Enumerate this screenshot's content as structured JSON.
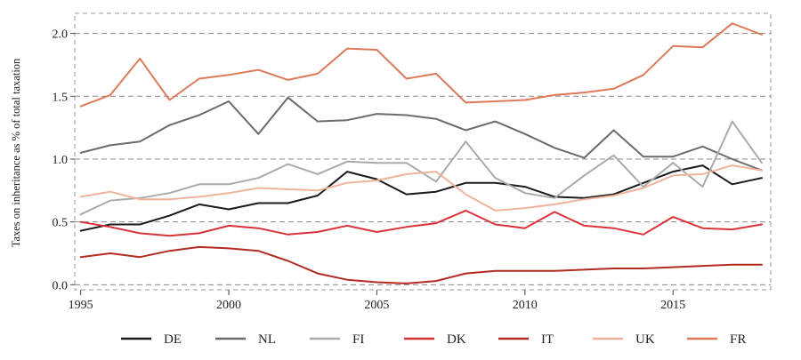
{
  "chart_data": {
    "type": "line",
    "title": "",
    "xlabel": "",
    "ylabel": "Taxes on inheritance as % of total taxation",
    "xlim": [
      1994.8,
      2018.3
    ],
    "ylim": [
      -0.04,
      2.16
    ],
    "x_ticks": [
      1995,
      2000,
      2005,
      2010,
      2015
    ],
    "y_ticks": [
      0.0,
      0.5,
      1.0,
      1.5,
      2.0
    ],
    "x_tick_labels": [
      "1995",
      "2000",
      "2005",
      "2010",
      "2015"
    ],
    "y_tick_labels": [
      "0.0",
      "0.5",
      "1.0",
      "1.5",
      "2.0"
    ],
    "grid": "horizontal dashed",
    "legend_position": "bottom",
    "x": [
      1995,
      1996,
      1997,
      1998,
      1999,
      2000,
      2001,
      2002,
      2003,
      2004,
      2005,
      2006,
      2007,
      2008,
      2009,
      2010,
      2011,
      2012,
      2013,
      2014,
      2015,
      2016,
      2017,
      2018
    ],
    "series": [
      {
        "name": "DE",
        "color": "#1a1a1a",
        "values": [
          0.43,
          0.48,
          0.48,
          0.55,
          0.64,
          0.6,
          0.65,
          0.65,
          0.71,
          0.9,
          0.84,
          0.72,
          0.74,
          0.81,
          0.81,
          0.78,
          0.7,
          0.69,
          0.72,
          0.81,
          0.9,
          0.95,
          0.8,
          0.85
        ]
      },
      {
        "name": "NL",
        "color": "#6b6b6b",
        "values": [
          1.05,
          1.11,
          1.14,
          1.27,
          1.35,
          1.46,
          1.2,
          1.49,
          1.3,
          1.31,
          1.36,
          1.35,
          1.32,
          1.23,
          1.3,
          1.2,
          1.09,
          1.01,
          1.23,
          1.02,
          1.02,
          1.1,
          1.0,
          0.91
        ]
      },
      {
        "name": "FI",
        "color": "#aaaaaa",
        "values": [
          0.56,
          0.67,
          0.69,
          0.73,
          0.8,
          0.8,
          0.85,
          0.96,
          0.88,
          0.98,
          0.97,
          0.97,
          0.82,
          1.14,
          0.85,
          0.73,
          0.69,
          0.87,
          1.03,
          0.78,
          0.97,
          0.78,
          1.3,
          0.97
        ]
      },
      {
        "name": "DK",
        "color": "#d8333a",
        "values": [
          0.5,
          0.46,
          0.41,
          0.39,
          0.41,
          0.47,
          0.45,
          0.4,
          0.42,
          0.47,
          0.42,
          0.46,
          0.49,
          0.59,
          0.48,
          0.45,
          0.58,
          0.47,
          0.45,
          0.4,
          0.54,
          0.45,
          0.44,
          0.48
        ]
      },
      {
        "name": "IT",
        "color": "#b22a22",
        "values": [
          0.22,
          0.25,
          0.22,
          0.27,
          0.3,
          0.29,
          0.27,
          0.19,
          0.09,
          0.04,
          0.02,
          0.01,
          0.03,
          0.09,
          0.11,
          0.11,
          0.11,
          0.12,
          0.13,
          0.13,
          0.14,
          0.15,
          0.16,
          0.16
        ]
      },
      {
        "name": "UK",
        "color": "#efb39c",
        "values": [
          0.7,
          0.74,
          0.68,
          0.68,
          0.7,
          0.73,
          0.77,
          0.76,
          0.75,
          0.81,
          0.83,
          0.88,
          0.9,
          0.72,
          0.59,
          0.61,
          0.64,
          0.68,
          0.71,
          0.77,
          0.87,
          0.88,
          0.95,
          0.91
        ]
      },
      {
        "name": "FR",
        "color": "#dc7a5a",
        "values": [
          1.42,
          1.51,
          1.8,
          1.47,
          1.64,
          1.67,
          1.71,
          1.63,
          1.68,
          1.88,
          1.87,
          1.64,
          1.68,
          1.45,
          1.46,
          1.47,
          1.51,
          1.53,
          1.56,
          1.67,
          1.9,
          1.89,
          2.08,
          1.99
        ]
      }
    ]
  }
}
